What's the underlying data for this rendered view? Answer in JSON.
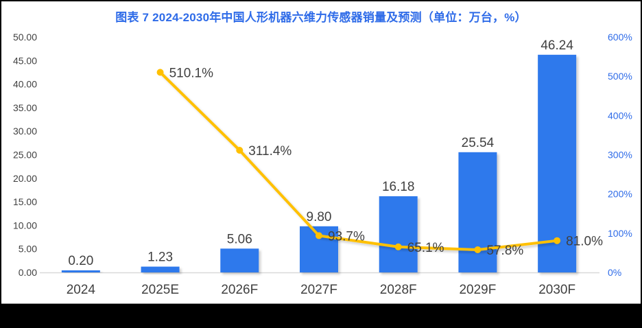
{
  "title": "图表 7 2024-2030年中国人形机器六维力传感器销量及预测（单位：万台，%）",
  "colors": {
    "title_blue": "#2E6BE8",
    "bar_blue": "#2F79EC",
    "line_yellow": "#FFC000",
    "text_dark": "#404040",
    "right_axis_blue": "#2E6BE8",
    "axis_line_gray": "#D9D9D9",
    "footer_black": "#000000"
  },
  "chart_data": {
    "type": "bar",
    "subtype": "combo-bar-line-dual-axis",
    "title": "图表 7 2024-2030年中国人形机器六维力传感器销量及预测（单位：万台，%）",
    "categories": [
      "2024",
      "2025E",
      "2026F",
      "2027F",
      "2028F",
      "2029F",
      "2030F"
    ],
    "series": [
      {
        "name": "bar-series-sales",
        "type": "bar",
        "axis": "left",
        "values": [
          0.2,
          1.23,
          5.06,
          9.8,
          16.18,
          25.54,
          46.24
        ],
        "labels": [
          "0.20",
          "1.23",
          "5.06",
          "9.80",
          "16.18",
          "25.54",
          "46.24"
        ]
      },
      {
        "name": "line-series-growth",
        "type": "line",
        "axis": "right",
        "values": [
          null,
          510.1,
          311.4,
          93.7,
          65.1,
          57.8,
          81.0
        ],
        "labels": [
          null,
          "510.1%",
          "311.4%",
          "93.7%",
          "65.1%",
          "57.8%",
          "81.0%"
        ]
      }
    ],
    "left_axis": {
      "min": 0,
      "max": 50,
      "step": 5,
      "tick_labels": [
        "0.00",
        "5.00",
        "10.00",
        "15.00",
        "20.00",
        "25.00",
        "30.00",
        "35.00",
        "40.00",
        "45.00",
        "50.00"
      ]
    },
    "right_axis": {
      "min": 0,
      "max": 600,
      "step": 100,
      "tick_labels": [
        "0%",
        "100%",
        "200%",
        "300%",
        "400%",
        "500%",
        "600%"
      ]
    },
    "grid": false,
    "legend": false
  }
}
